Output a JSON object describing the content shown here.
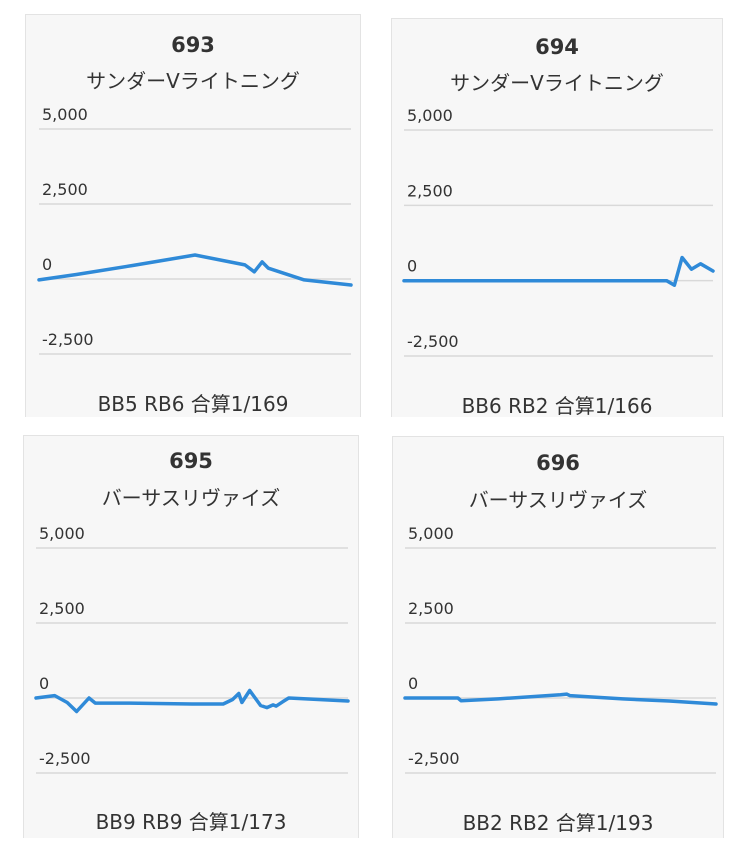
{
  "chart_data": [
    {
      "type": "line",
      "title": "693",
      "subtitle": "サンダーVライトニング",
      "footer": "BB5 RB6 合算1/169",
      "yticks": [
        5000,
        2500,
        0,
        -2500
      ],
      "ytick_labels": [
        "5,000",
        "2,500",
        "0",
        "-2,500"
      ],
      "ylim": [
        -2500,
        5000
      ],
      "grid": true,
      "color": "#2f8ad8",
      "series": [
        {
          "x": [
            0,
            0.12,
            0.3,
            0.5,
            0.66,
            0.69,
            0.715,
            0.735,
            0.85,
            1.0
          ],
          "y": [
            -30,
            150,
            450,
            800,
            470,
            240,
            570,
            360,
            -30,
            -200
          ]
        }
      ]
    },
    {
      "type": "line",
      "title": "694",
      "subtitle": "サンダーVライトニング",
      "footer": "BB6 RB2 合算1/166",
      "yticks": [
        5000,
        2500,
        0,
        -2500
      ],
      "ytick_labels": [
        "5,000",
        "2,500",
        "0",
        "-2,500"
      ],
      "ylim": [
        -2500,
        5000
      ],
      "grid": true,
      "color": "#2f8ad8",
      "series": [
        {
          "x": [
            0,
            0.3,
            0.6,
            0.85,
            0.875,
            0.9,
            0.93,
            0.96,
            1.0
          ],
          "y": [
            0,
            0,
            0,
            0,
            -150,
            770,
            380,
            560,
            320
          ]
        }
      ]
    },
    {
      "type": "line",
      "title": "695",
      "subtitle": "バーサスリヴァイズ",
      "footer": "BB9 RB9 合算1/173",
      "yticks": [
        5000,
        2500,
        0,
        -2500
      ],
      "ytick_labels": [
        "5,000",
        "2,500",
        "0",
        "-2,500"
      ],
      "ylim": [
        -2500,
        5000
      ],
      "grid": true,
      "color": "#2f8ad8",
      "series": [
        {
          "x": [
            0,
            0.06,
            0.1,
            0.13,
            0.17,
            0.19,
            0.3,
            0.5,
            0.6,
            0.63,
            0.65,
            0.66,
            0.685,
            0.72,
            0.74,
            0.76,
            0.77,
            0.79,
            0.81,
            0.85,
            1.0
          ],
          "y": [
            0,
            80,
            -150,
            -450,
            0,
            -170,
            -170,
            -200,
            -200,
            -50,
            150,
            -150,
            250,
            -250,
            -320,
            -230,
            -270,
            -130,
            0,
            -20,
            -100
          ]
        }
      ]
    },
    {
      "type": "line",
      "title": "696",
      "subtitle": "バーサスリヴァイズ",
      "footer": "BB2 RB2 合算1/193",
      "yticks": [
        5000,
        2500,
        0,
        -2500
      ],
      "ytick_labels": [
        "5,000",
        "2,500",
        "0",
        "-2,500"
      ],
      "ylim": [
        -2500,
        5000
      ],
      "grid": true,
      "color": "#2f8ad8",
      "series": [
        {
          "x": [
            0,
            0.17,
            0.18,
            0.3,
            0.5,
            0.52,
            0.53,
            0.7,
            0.85,
            1.0
          ],
          "y": [
            0,
            0,
            -90,
            -30,
            110,
            130,
            80,
            -30,
            -100,
            -200
          ]
        }
      ]
    }
  ]
}
